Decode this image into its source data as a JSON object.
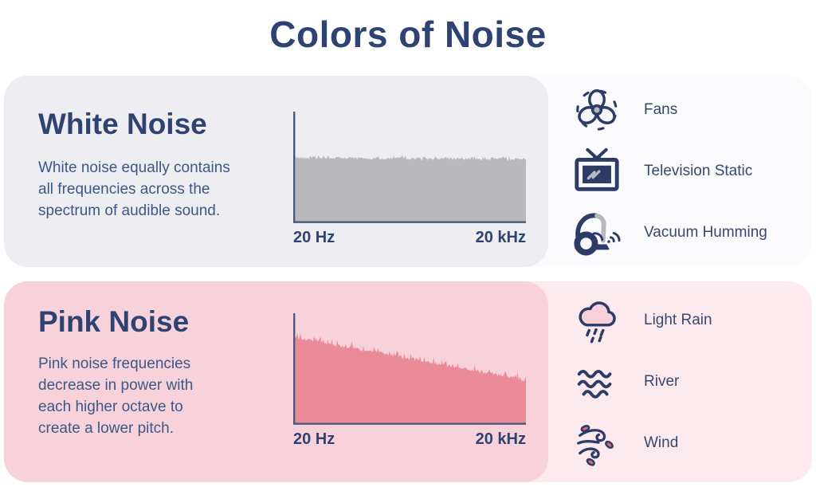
{
  "title": "Colors of Noise",
  "colors": {
    "navy_title": "#2e4372",
    "navy_icon": "#2c3c66",
    "body_text": "#3c5886",
    "white_panel_left": "#ededf2",
    "white_panel_right": "#fbfafd",
    "pink_panel_left": "#f8d2da",
    "pink_panel_right": "#fdeaef",
    "white_noise_fill": "#b9b8bc",
    "pink_noise_fill": "#eb8b98"
  },
  "sections": {
    "white": {
      "heading": "White Noise",
      "desc_lines": [
        "White noise equally contains",
        "all frequencies across the",
        "spectrum of audible sound."
      ],
      "examples": [
        {
          "icon": "fan-icon",
          "label": "Fans"
        },
        {
          "icon": "tv-static-icon",
          "label": "Television Static"
        },
        {
          "icon": "vacuum-icon",
          "label": "Vacuum Humming"
        }
      ]
    },
    "pink": {
      "heading": "Pink Noise",
      "desc_lines": [
        "Pink noise frequencies",
        "decrease in power with",
        "each higher octave to",
        "create a lower pitch."
      ],
      "examples": [
        {
          "icon": "rain-cloud-icon",
          "label": "Light Rain"
        },
        {
          "icon": "river-icon",
          "label": "River"
        },
        {
          "icon": "wind-icon",
          "label": "Wind"
        }
      ]
    }
  },
  "chart_data": [
    {
      "id": "white-noise-spectrum",
      "type": "area",
      "title": "White Noise",
      "xlabel_start": "20 Hz",
      "xlabel_end": "20 kHz",
      "x_range": "20 Hz to 20 kHz (audible spectrum)",
      "trend": "flat - equal power at all frequencies",
      "power_start": 0.59,
      "power_end": 0.58,
      "jitter": 0.012,
      "spike": 0.022,
      "fill": "#b9b8bc",
      "axis_color": "#4a5a7e"
    },
    {
      "id": "pink-noise-spectrum",
      "type": "area",
      "title": "Pink Noise",
      "xlabel_start": "20 Hz",
      "xlabel_end": "20 kHz",
      "x_range": "20 Hz to 20 kHz (audible spectrum)",
      "trend": "declining - power decreases with each higher octave",
      "power_start": 0.8,
      "power_end": 0.4,
      "jitter": 0.016,
      "spike": 0.05,
      "fill": "#eb8b98",
      "axis_color": "#4a5a7e"
    }
  ]
}
